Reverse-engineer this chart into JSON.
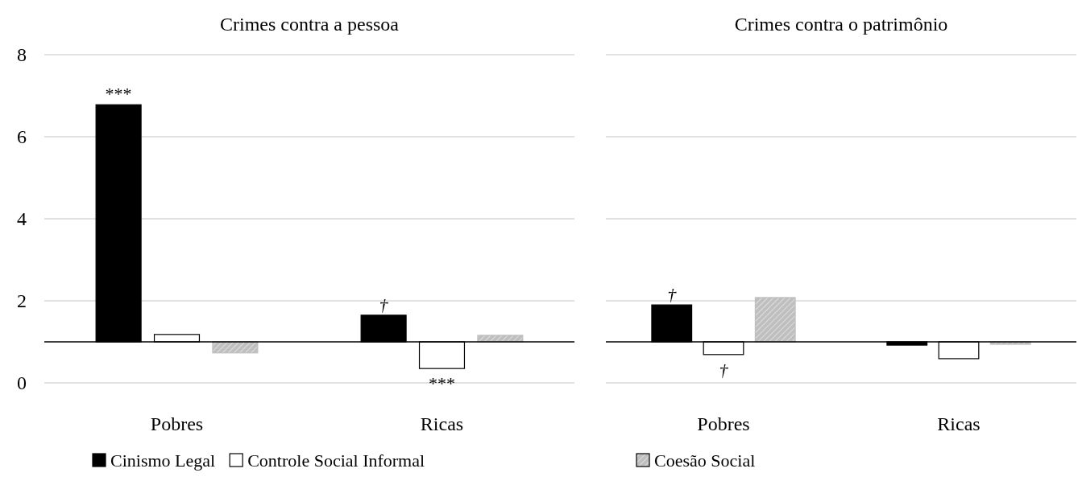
{
  "chart_data": [
    {
      "type": "bar",
      "title": "Crimes contra a pessoa",
      "categories": [
        "Pobres",
        "Ricas"
      ],
      "series": [
        {
          "name": "Cinismo Legal",
          "color": "#000000",
          "base": [
            1,
            1
          ],
          "values": [
            5.78,
            0.65
          ],
          "value_labels": [
            "***",
            "†"
          ]
        },
        {
          "name": "Controle Social Informal",
          "color": "#ffffff",
          "base": [
            1,
            1
          ],
          "values": [
            0.18,
            -0.65
          ],
          "value_labels": [
            null,
            "***"
          ]
        },
        {
          "name": "Coesão Social",
          "color": "#bfbfbf",
          "base": [
            1,
            1
          ],
          "values": [
            -0.27,
            0.16
          ]
        }
      ],
      "ylim": [
        0,
        8
      ],
      "yticks": [
        0,
        2,
        4,
        6,
        8
      ],
      "grid": "y",
      "legend": "bottom",
      "ref_lines": [
        {
          "axis": "y",
          "value": 1,
          "color": "#000000"
        }
      ]
    },
    {
      "type": "bar",
      "title": "Crimes contra o patrimônio",
      "categories": [
        "Pobres",
        "Ricas"
      ],
      "series": [
        {
          "color": "#000000",
          "base": [
            1,
            1
          ],
          "values": [
            0.9,
            -0.08
          ],
          "value_labels": [
            "†",
            null
          ]
        },
        {
          "color": "#ffffff",
          "base": [
            1,
            1
          ],
          "values": [
            -0.31,
            -0.41
          ],
          "value_labels": [
            "†",
            null
          ]
        },
        {
          "color": "#bfbfbf",
          "base": [
            1,
            1
          ],
          "values": [
            1.08,
            -0.06
          ]
        }
      ],
      "ylim": [
        0,
        8
      ],
      "yticks": [
        0,
        2,
        4,
        6,
        8
      ],
      "grid": "y",
      "tick_labels": "x",
      "ref_lines": [
        {
          "axis": "y",
          "value": 1,
          "color": "#000000"
        }
      ]
    }
  ]
}
